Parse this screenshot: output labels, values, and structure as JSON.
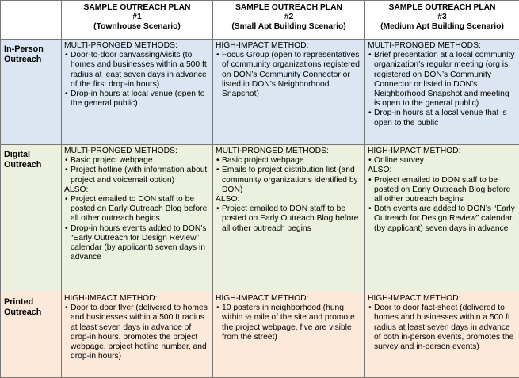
{
  "table": {
    "columns": [
      {
        "lines": [
          "SAMPLE OUTREACH PLAN",
          "#1",
          "(Townhouse Scenario)"
        ]
      },
      {
        "lines": [
          "SAMPLE OUTREACH PLAN",
          "#2",
          "(Small Apt Building Scenario)"
        ]
      },
      {
        "lines": [
          "SAMPLE OUTREACH PLAN",
          "#3",
          "(Medium Apt Building Scenario)"
        ]
      }
    ],
    "rows": [
      {
        "label": "In-Person Outreach",
        "cells": [
          [
            {
              "heading": "MULTI-PRONGED METHODS:",
              "bullets": [
                "Door-to-door canvassing/visits (to homes and businesses within a 500 ft radius at least seven days in advance of the first drop-in hours)",
                "Drop-in hours at local venue (open to the general public)"
              ]
            }
          ],
          [
            {
              "heading": "HIGH-IMPACT METHOD:",
              "bullets": [
                "Focus Group (open to representatives of community organizations registered on DON’s Community Connector or listed in DON’s Neighborhood Snapshot)"
              ]
            }
          ],
          [
            {
              "heading": "MULTI-PRONGED METHODS:",
              "bullets": [
                "Brief presentation at a local community organization’s regular meeting (org is registered on DON’s Community Connector or listed in DON’s Neighborhood Snapshot and meeting is open to the general public)",
                "Drop-in hours at a local venue that is open to the public"
              ]
            }
          ]
        ]
      },
      {
        "label": "Digital Outreach",
        "cells": [
          [
            {
              "heading": "MULTI-PRONGED METHODS:",
              "bullets": [
                "Basic project webpage",
                "Project hotline (with information about project and voicemail option)"
              ]
            },
            {
              "heading": "ALSO:",
              "bullets": [
                "Project emailed to DON staff to be posted on Early Outreach Blog before all other outreach begins",
                "Drop-in hours events added to DON’s “Early Outreach for Design Review” calendar (by applicant) seven days in advance"
              ]
            }
          ],
          [
            {
              "heading": "MULTI-PRONGED METHODS:",
              "bullets": [
                "Basic project webpage",
                "Emails to project distribution list (and community organizations identified by DON)"
              ]
            },
            {
              "heading": "ALSO:",
              "bullets": [
                "Project emailed to DON staff to be posted on Early Outreach Blog before all other outreach begins"
              ]
            }
          ],
          [
            {
              "heading": "HIGH-IMPACT METHOD:",
              "bullets": [
                "Online survey"
              ]
            },
            {
              "heading": "ALSO:",
              "bullets": [
                "Project emailed to DON staff to be posted on Early Outreach Blog before all other outreach begins",
                "Both events are added to DON’s “Early Outreach for Design Review” calendar (by applicant) seven days in advance"
              ]
            }
          ]
        ]
      },
      {
        "label": "Printed Outreach",
        "cells": [
          [
            {
              "heading": "HIGH-IMPACT METHOD:",
              "bullets": [
                "Door to door flyer (delivered to homes and businesses within a 500 ft radius at least seven days in advance of drop-in hours, promotes the project webpage, project hotline number, and drop-in hours)"
              ]
            }
          ],
          [
            {
              "heading": "HIGH-IMPACT METHOD:",
              "bullets": [
                "10 posters in neighborhood (hung within ½ mile of the site and promote the project webpage, five are visible from the street)"
              ]
            }
          ],
          [
            {
              "heading": "HIGH-IMPACT METHOD:",
              "bullets": [
                "Door to door fact-sheet (delivered to homes and businesses within a 500 ft radius at least seven days in advance of both in-person events, promotes the survey and in-person events)"
              ]
            }
          ]
        ]
      }
    ]
  }
}
